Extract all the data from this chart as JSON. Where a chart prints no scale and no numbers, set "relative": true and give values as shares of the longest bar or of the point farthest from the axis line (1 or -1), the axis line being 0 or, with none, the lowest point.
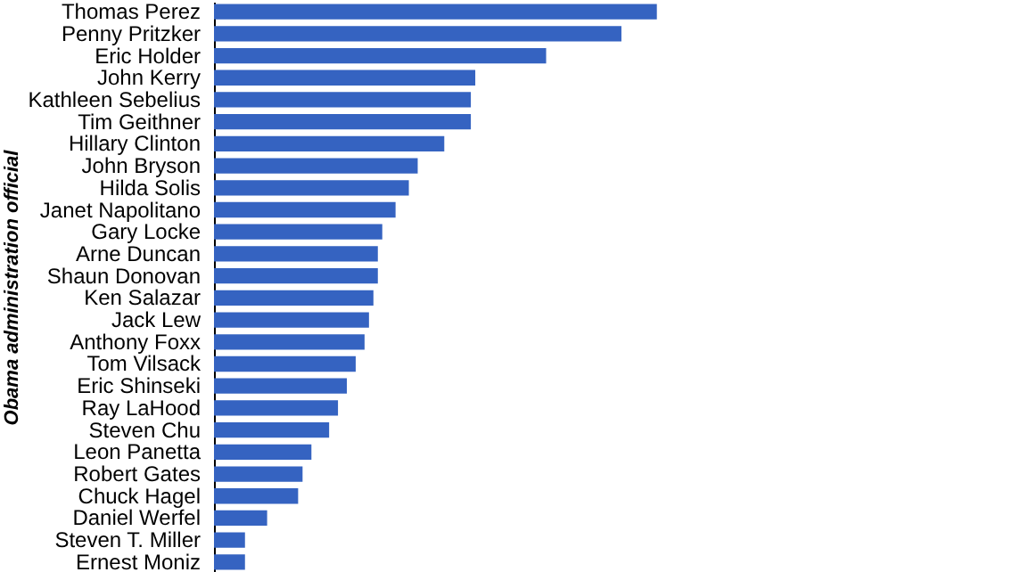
{
  "chart_data": {
    "type": "bar",
    "orientation": "horizontal",
    "relative": true,
    "ylabel": "Obama administration official",
    "grid": false,
    "categories": [
      "Thomas Perez",
      "Penny Pritzker",
      "Eric Holder",
      "John Kerry",
      "Kathleen Sebelius",
      "Tim Geithner",
      "Hillary Clinton",
      "John Bryson",
      "Hilda Solis",
      "Janet Napolitano",
      "Gary Locke",
      "Arne Duncan",
      "Shaun Donovan",
      "Ken Salazar",
      "Jack Lew",
      "Anthony Foxx",
      "Tom Vilsack",
      "Eric Shinseki",
      "Ray LaHood",
      "Steven Chu",
      "Leon Panetta",
      "Robert Gates",
      "Chuck Hagel",
      "Daniel Werfel",
      "Steven T. Miller",
      "Ernest Moniz"
    ],
    "values": [
      1,
      0.92,
      0.75,
      0.59,
      0.58,
      0.58,
      0.52,
      0.46,
      0.44,
      0.41,
      0.38,
      0.37,
      0.37,
      0.36,
      0.35,
      0.34,
      0.32,
      0.3,
      0.28,
      0.26,
      0.22,
      0.2,
      0.19,
      0.12,
      0.07,
      0.07
    ],
    "color": "#3563c1"
  }
}
